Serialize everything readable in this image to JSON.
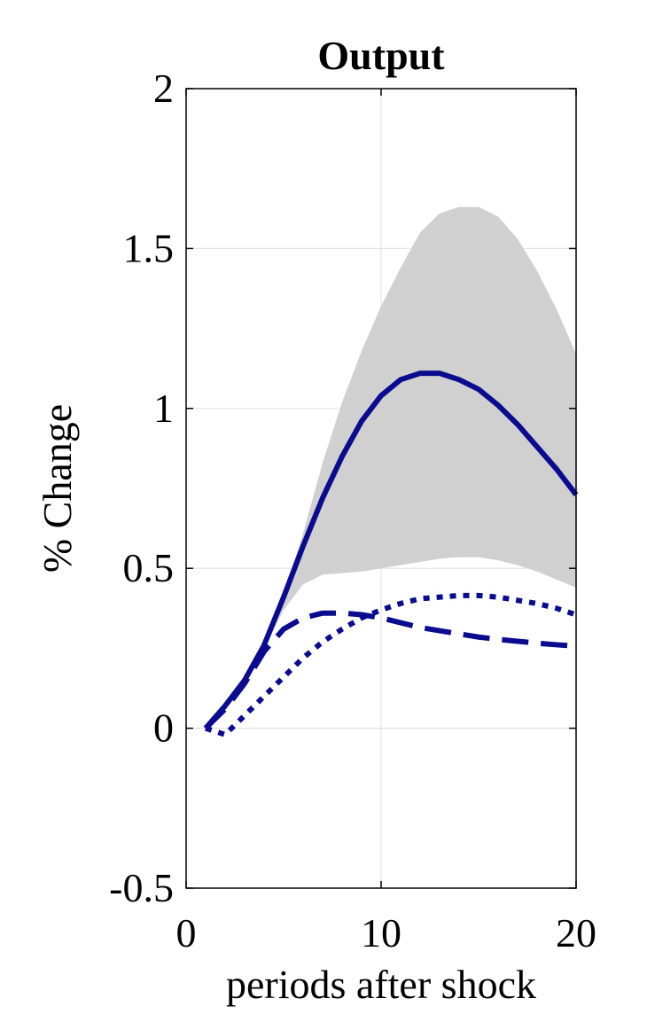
{
  "chart_data": {
    "type": "line",
    "title": "Output",
    "xlabel": "periods after shock",
    "ylabel": "% Change",
    "xlim": [
      0,
      20
    ],
    "ylim": [
      -0.5,
      2
    ],
    "xticks": [
      0,
      10,
      20
    ],
    "xtick_labels": [
      "0",
      "10",
      "20"
    ],
    "yticks": [
      -0.5,
      0,
      0.5,
      1,
      1.5,
      2
    ],
    "ytick_labels": [
      "-0.5",
      "0",
      "0.5",
      "1",
      "1.5",
      "2"
    ],
    "grid": true,
    "x": [
      1,
      2,
      3,
      4,
      5,
      6,
      7,
      8,
      9,
      10,
      11,
      12,
      13,
      14,
      15,
      16,
      17,
      18,
      19,
      20
    ],
    "band": {
      "color": "#d0d0d0",
      "lower": [
        0.0,
        0.06,
        0.14,
        0.25,
        0.37,
        0.45,
        0.48,
        0.485,
        0.49,
        0.5,
        0.51,
        0.52,
        0.53,
        0.535,
        0.535,
        0.525,
        0.51,
        0.49,
        0.465,
        0.44
      ],
      "upper": [
        0.0,
        0.06,
        0.14,
        0.26,
        0.42,
        0.61,
        0.83,
        1.02,
        1.18,
        1.32,
        1.44,
        1.55,
        1.61,
        1.63,
        1.63,
        1.6,
        1.53,
        1.43,
        1.31,
        1.17
      ]
    },
    "series": [
      {
        "style": "solid",
        "color": "#0b0b8f",
        "values": [
          0.0,
          0.07,
          0.15,
          0.26,
          0.41,
          0.57,
          0.72,
          0.85,
          0.96,
          1.04,
          1.09,
          1.11,
          1.11,
          1.09,
          1.06,
          1.01,
          0.95,
          0.88,
          0.81,
          0.73
        ]
      },
      {
        "style": "dashed",
        "color": "#0b0b8f",
        "values": [
          0.0,
          0.06,
          0.14,
          0.24,
          0.31,
          0.345,
          0.36,
          0.36,
          0.355,
          0.345,
          0.33,
          0.315,
          0.305,
          0.295,
          0.285,
          0.278,
          0.272,
          0.266,
          0.261,
          0.257
        ]
      },
      {
        "style": "dotted",
        "color": "#0b0b8f",
        "values": [
          0.0,
          -0.02,
          0.04,
          0.1,
          0.16,
          0.22,
          0.27,
          0.31,
          0.345,
          0.37,
          0.39,
          0.405,
          0.41,
          0.415,
          0.415,
          0.41,
          0.4,
          0.39,
          0.375,
          0.355
        ]
      }
    ]
  }
}
